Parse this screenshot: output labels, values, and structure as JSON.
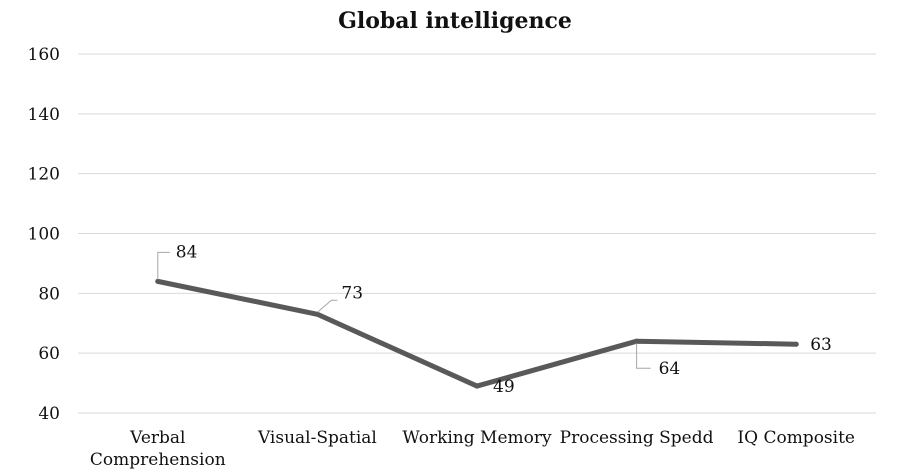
{
  "chart_data": {
    "type": "line",
    "title": "Global intelligence",
    "categories": [
      "Verbal Comprehension",
      "Visual-Spatial",
      "Working Memory",
      "Processing Spedd",
      "IQ Composite"
    ],
    "category_lines": [
      [
        "Verbal",
        "Comprehension"
      ],
      [
        "Visual-Spatial"
      ],
      [
        "Working Memory"
      ],
      [
        "Processing Spedd"
      ],
      [
        "IQ Composite"
      ]
    ],
    "series": [
      {
        "values": [
          84,
          73,
          49,
          64,
          63
        ],
        "color": "#595959"
      }
    ],
    "data_labels": [
      "84",
      "73",
      "49",
      "64",
      "63"
    ],
    "ylim": [
      40,
      160
    ],
    "yticks": [
      40,
      60,
      80,
      100,
      120,
      140,
      160
    ],
    "ytick_labels": [
      "40",
      "60",
      "80",
      "100",
      "120",
      "140",
      "160"
    ],
    "grid": true,
    "legend": "none"
  }
}
